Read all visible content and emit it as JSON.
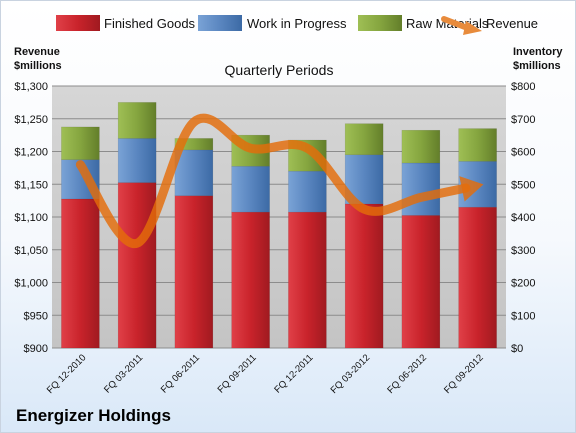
{
  "chart_data": {
    "type": "bar",
    "title": "Quarterly Periods",
    "company": "Energizer Holdings",
    "categories": [
      "FQ 12-2010",
      "FQ 03-2011",
      "FQ 06-2011",
      "FQ 09-2011",
      "FQ 12-2011",
      "FQ 03-2012",
      "FQ 06-2012",
      "FQ 09-2012"
    ],
    "y_left_label_line1": "Revenue",
    "y_left_label_line2": "$millions",
    "y_right_label_line1": "Inventory",
    "y_right_label_line2": "$millions",
    "y_left_range": [
      900,
      1300
    ],
    "y_right_range": [
      0,
      800
    ],
    "y_left_ticks": [
      "$900",
      "$950",
      "$1,000",
      "$1,050",
      "$1,100",
      "$1,150",
      "$1,200",
      "$1,250",
      "$1,300"
    ],
    "y_right_ticks": [
      "$0",
      "$100",
      "$200",
      "$300",
      "$400",
      "$500",
      "$600",
      "$700",
      "$800"
    ],
    "grid": true,
    "legend_position": "top",
    "series": [
      {
        "name": "Finished Goods",
        "axis": "right",
        "kind": "stacked-bar",
        "color": "#cc2229",
        "values": [
          455,
          505,
          465,
          415,
          415,
          440,
          405,
          430
        ]
      },
      {
        "name": "Work in Progress",
        "axis": "right",
        "kind": "stacked-bar",
        "color": "#4f81bd",
        "values": [
          120,
          135,
          140,
          140,
          125,
          150,
          160,
          140
        ]
      },
      {
        "name": "Raw Materials",
        "axis": "right",
        "kind": "stacked-bar",
        "color": "#77933c",
        "values": [
          100,
          110,
          35,
          95,
          95,
          95,
          100,
          100
        ]
      },
      {
        "name": "Revenue",
        "axis": "left",
        "kind": "line",
        "color": "#e46c0a",
        "values": [
          1180,
          1060,
          1245,
          1205,
          1205,
          1112,
          1130,
          1148
        ]
      }
    ]
  }
}
